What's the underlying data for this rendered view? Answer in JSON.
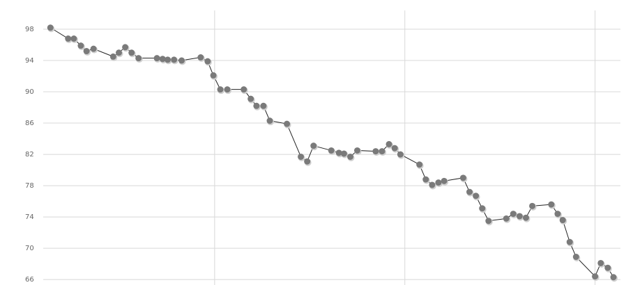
{
  "chart_data": {
    "type": "line",
    "x": [
      4.1,
      6.9,
      7.8,
      8.9,
      9.8,
      10.9,
      14.0,
      14.9,
      15.9,
      16.9,
      18.0,
      20.9,
      21.8,
      22.6,
      23.6,
      24.8,
      27.8,
      28.9,
      29.8,
      30.9,
      32.0,
      34.6,
      35.7,
      36.6,
      37.7,
      38.7,
      41.4,
      43.6,
      44.6,
      45.6,
      48.4,
      49.6,
      50.4,
      51.4,
      52.5,
      55.4,
      56.4,
      57.5,
      58.4,
      59.3,
      62.3,
      63.3,
      64.3,
      65.3,
      66.2,
      69.2,
      70.2,
      71.2,
      72.2,
      73.2,
      76.0,
      77.1,
      78.1,
      79.1,
      80.1,
      83.1,
      84.1,
      84.9,
      86.0,
      87.0,
      90.0,
      90.9,
      92.0,
      92.9
    ],
    "series": [
      {
        "color": "#222222",
        "marker_color": "#7a7a7a",
        "values": [
          98.2,
          96.8,
          96.8,
          95.9,
          95.2,
          95.5,
          94.5,
          95.0,
          95.7,
          95.0,
          94.3,
          94.3,
          94.2,
          94.1,
          94.1,
          94.0,
          94.4,
          93.9,
          92.1,
          90.3,
          90.3,
          90.3,
          89.1,
          88.2,
          88.2,
          86.3,
          85.9,
          81.7,
          81.1,
          83.1,
          82.5,
          82.2,
          82.1,
          81.7,
          82.5,
          82.4,
          82.4,
          83.3,
          82.8,
          82.0,
          80.7,
          78.8,
          78.1,
          78.4,
          78.6,
          79.0,
          77.2,
          76.7,
          75.1,
          73.5,
          73.8,
          74.4,
          74.1,
          73.9,
          75.4,
          75.6,
          74.4,
          73.6,
          70.8,
          68.9,
          66.4,
          68.1,
          67.5,
          66.3
        ]
      }
    ],
    "xlim": [
      0,
      94
    ],
    "xticks": [
      30,
      60,
      90
    ],
    "ylim": [
      65.3,
      100.4
    ],
    "yticks": [
      66,
      70,
      74,
      78,
      82,
      86,
      90,
      94,
      98
    ],
    "grid": true
  }
}
